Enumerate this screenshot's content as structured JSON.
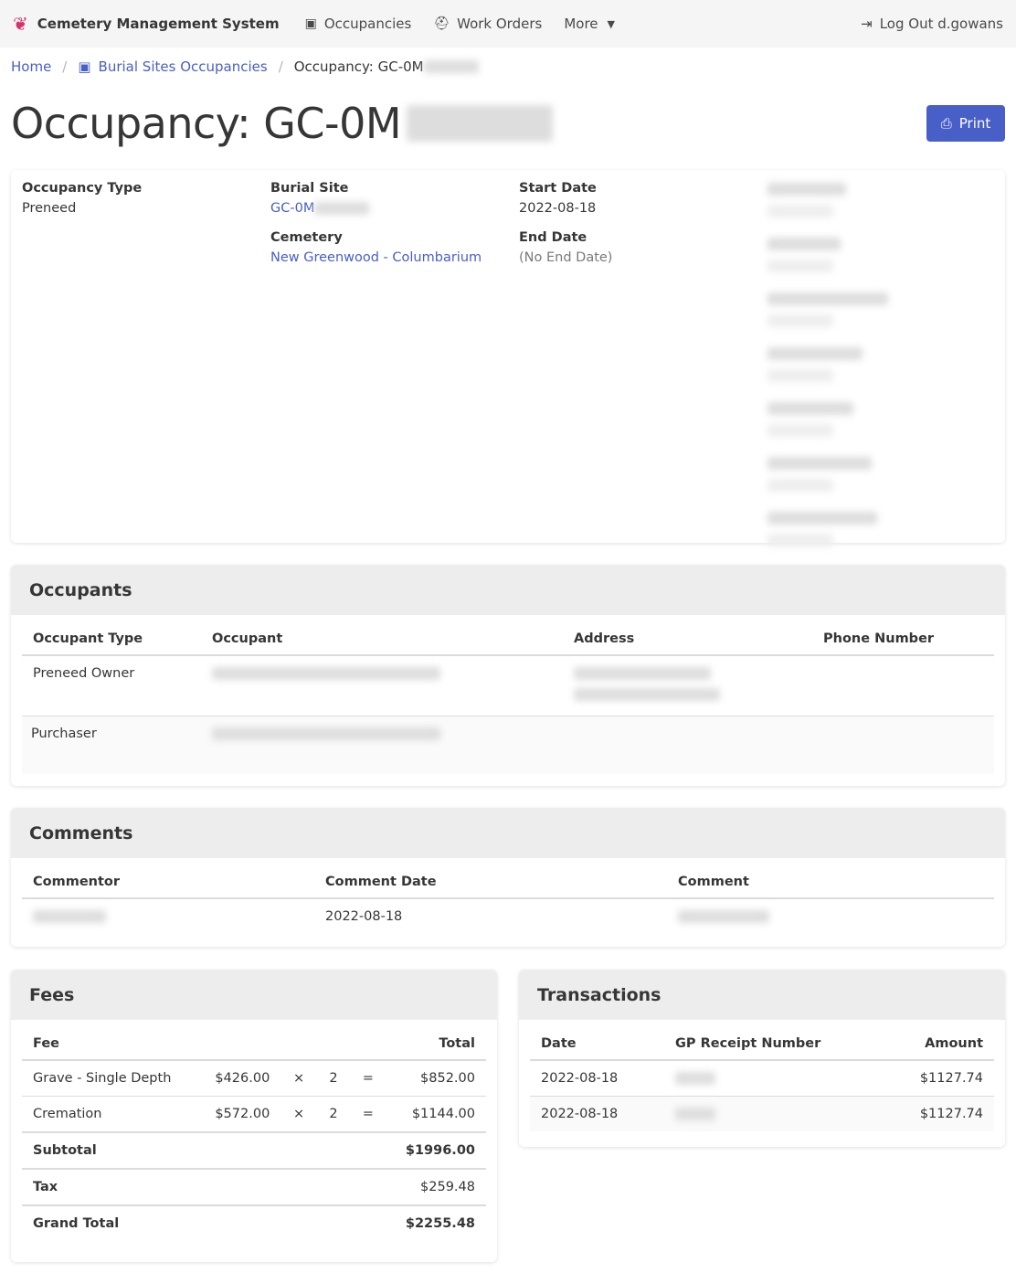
{
  "nav": {
    "brand": "Cemetery Management System",
    "occupancies": "Occupancies",
    "work_orders": "Work Orders",
    "more": "More",
    "logout": "Log Out d.gowans"
  },
  "breadcrumb": {
    "home": "Home",
    "sites": "Burial Sites Occupancies",
    "current": "Occupancy: GC-0M"
  },
  "title": "Occupancy: GC-0M",
  "print_label": "Print",
  "details": {
    "occupancy_type_label": "Occupancy Type",
    "occupancy_type": "Preneed",
    "burial_site_label": "Burial Site",
    "burial_site": "GC-0M",
    "cemetery_label": "Cemetery",
    "cemetery": "New Greenwood - Columbarium",
    "start_date_label": "Start Date",
    "start_date": "2022-08-18",
    "end_date_label": "End Date",
    "end_date": "(No End Date)"
  },
  "occupants": {
    "title": "Occupants",
    "headers": [
      "Occupant Type",
      "Occupant",
      "Address",
      "Phone Number"
    ],
    "rows": [
      {
        "type": "Preneed Owner"
      },
      {
        "type": "Purchaser"
      }
    ]
  },
  "comments": {
    "title": "Comments",
    "headers": [
      "Commentor",
      "Comment Date",
      "Comment"
    ],
    "rows": [
      {
        "date": "2022-08-18"
      }
    ]
  },
  "fees": {
    "title": "Fees",
    "headers": [
      "Fee",
      "Total"
    ],
    "rows": [
      {
        "name": "Grave - Single Depth",
        "unit": "$426.00",
        "times": "×",
        "qty": "2",
        "eq": "=",
        "total": "$852.00"
      },
      {
        "name": "Cremation",
        "unit": "$572.00",
        "times": "×",
        "qty": "2",
        "eq": "=",
        "total": "$1144.00"
      }
    ],
    "subtotal_label": "Subtotal",
    "subtotal": "$1996.00",
    "tax_label": "Tax",
    "tax": "$259.48",
    "grand_label": "Grand Total",
    "grand": "$2255.48"
  },
  "transactions": {
    "title": "Transactions",
    "headers": [
      "Date",
      "GP Receipt Number",
      "Amount"
    ],
    "rows": [
      {
        "date": "2022-08-18",
        "amount": "$1127.74"
      },
      {
        "date": "2022-08-18",
        "amount": "$1127.74"
      }
    ]
  },
  "colors": {
    "link": "#485fc7",
    "header_bg": "#f5f5f5",
    "panel_bg": "#ededed"
  }
}
